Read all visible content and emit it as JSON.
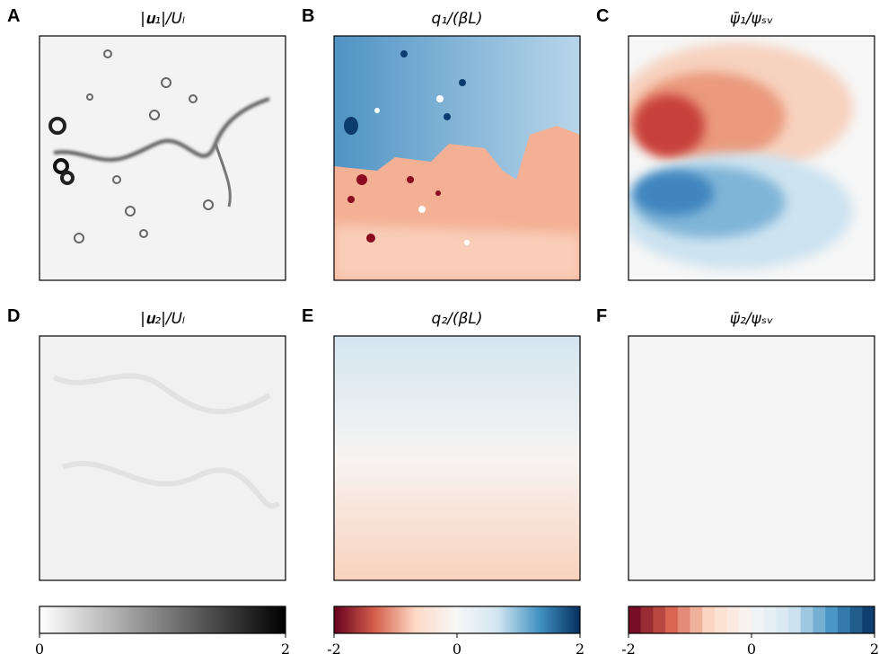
{
  "chart_data": [
    {
      "type": "image",
      "label": "A",
      "title": "|𝐮₁|/Uₗ"
    },
    {
      "type": "image",
      "label": "B",
      "title": "q₁/(βL)"
    },
    {
      "type": "image",
      "label": "C",
      "title": "ψ̄₁/ψₛᵥ"
    },
    {
      "type": "image",
      "label": "D",
      "title": "|𝐮₂|/Uₗ"
    },
    {
      "type": "image",
      "label": "E",
      "title": "q₂/(βL)"
    },
    {
      "type": "image",
      "label": "F",
      "title": "ψ̄₂/ψₛᵥ"
    },
    {
      "type": "colorbar",
      "colors": [
        "#ffffff",
        "#000000"
      ],
      "xlim": [
        0,
        2
      ],
      "xticks": [
        0,
        2
      ]
    },
    {
      "type": "colorbar",
      "colors": [
        "#67001f",
        "#d6604d",
        "#fddbc7",
        "#f7f7f7",
        "#d1e5f0",
        "#4393c3",
        "#053061"
      ],
      "xlim": [
        -2,
        2
      ],
      "xticks": [
        -2,
        0,
        2
      ]
    },
    {
      "type": "colorbar",
      "colors": [
        "#67001f",
        "#d6604d",
        "#fddbc7",
        "#f7f7f7",
        "#d1e5f0",
        "#4393c3",
        "#053061"
      ],
      "xlim": [
        -2,
        2
      ],
      "xticks": [
        -2,
        0,
        2
      ],
      "levels": 20
    }
  ]
}
